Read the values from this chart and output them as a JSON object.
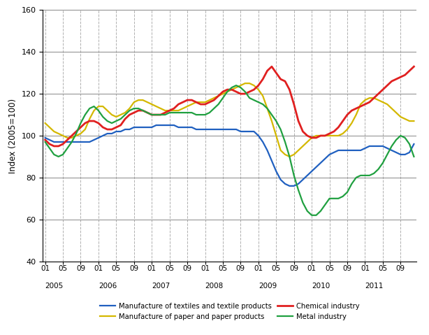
{
  "ylabel": "Index (2005=100)",
  "ylim": [
    40,
    160
  ],
  "yticks": [
    40,
    60,
    80,
    100,
    120,
    140,
    160
  ],
  "n_months": 84,
  "series": {
    "textiles": {
      "label": "Manufacture of textiles and textile products",
      "color": "#2060c0",
      "linewidth": 1.6,
      "values": [
        99,
        98,
        97,
        97,
        97,
        97,
        97,
        97,
        97,
        97,
        97,
        98,
        99,
        100,
        101,
        101,
        102,
        102,
        103,
        103,
        104,
        104,
        104,
        104,
        104,
        105,
        105,
        105,
        105,
        105,
        104,
        104,
        104,
        104,
        103,
        103,
        103,
        103,
        103,
        103,
        103,
        103,
        103,
        103,
        102,
        102,
        102,
        102,
        100,
        97,
        93,
        88,
        83,
        79,
        77,
        76,
        76,
        77,
        79,
        81,
        83,
        85,
        87,
        89,
        91,
        92,
        93,
        93,
        93,
        93,
        93,
        93,
        94,
        95,
        95,
        95,
        95,
        94,
        93,
        92,
        91,
        91,
        92,
        96
      ]
    },
    "paper": {
      "label": "Manufacture of paper and paper products",
      "color": "#d4b800",
      "linewidth": 1.6,
      "values": [
        106,
        104,
        102,
        101,
        100,
        99,
        99,
        100,
        101,
        103,
        108,
        112,
        114,
        114,
        112,
        110,
        109,
        110,
        111,
        113,
        116,
        117,
        117,
        116,
        115,
        114,
        113,
        112,
        112,
        112,
        112,
        113,
        114,
        115,
        116,
        116,
        116,
        117,
        118,
        119,
        120,
        121,
        122,
        123,
        124,
        125,
        125,
        124,
        122,
        119,
        113,
        107,
        100,
        93,
        91,
        90,
        91,
        93,
        95,
        97,
        99,
        100,
        100,
        100,
        100,
        100,
        100,
        101,
        103,
        106,
        110,
        115,
        117,
        118,
        118,
        117,
        116,
        115,
        113,
        111,
        109,
        108,
        107,
        107
      ]
    },
    "chemical": {
      "label": "Chemical industry",
      "color": "#e02020",
      "linewidth": 2.0,
      "values": [
        98,
        96,
        95,
        95,
        96,
        98,
        100,
        102,
        104,
        106,
        107,
        107,
        106,
        104,
        103,
        103,
        104,
        105,
        108,
        110,
        111,
        112,
        112,
        111,
        110,
        110,
        110,
        111,
        112,
        113,
        115,
        116,
        117,
        117,
        116,
        115,
        115,
        116,
        117,
        119,
        121,
        122,
        122,
        121,
        120,
        120,
        121,
        122,
        124,
        127,
        131,
        133,
        130,
        127,
        126,
        122,
        115,
        107,
        102,
        100,
        99,
        99,
        100,
        100,
        101,
        102,
        104,
        107,
        110,
        112,
        113,
        114,
        115,
        116,
        118,
        120,
        122,
        124,
        126,
        127,
        128,
        129,
        131,
        133
      ]
    },
    "metal": {
      "label": "Metal industry",
      "color": "#20a040",
      "linewidth": 1.6,
      "values": [
        97,
        94,
        91,
        90,
        91,
        94,
        97,
        101,
        106,
        110,
        113,
        114,
        112,
        109,
        107,
        106,
        107,
        108,
        110,
        112,
        113,
        113,
        112,
        111,
        110,
        110,
        110,
        110,
        111,
        111,
        111,
        111,
        111,
        111,
        110,
        110,
        110,
        111,
        113,
        115,
        118,
        121,
        123,
        124,
        123,
        121,
        118,
        117,
        116,
        115,
        113,
        110,
        107,
        103,
        97,
        90,
        81,
        74,
        68,
        64,
        62,
        62,
        64,
        67,
        70,
        70,
        70,
        71,
        73,
        77,
        80,
        81,
        81,
        81,
        82,
        84,
        87,
        91,
        95,
        98,
        100,
        99,
        96,
        90
      ]
    }
  },
  "vgrid_color": "#b0b0b0",
  "hgrid_color": "#888888",
  "background_color": "#ffffff",
  "legend_order": [
    "textiles",
    "paper",
    "chemical",
    "metal"
  ]
}
